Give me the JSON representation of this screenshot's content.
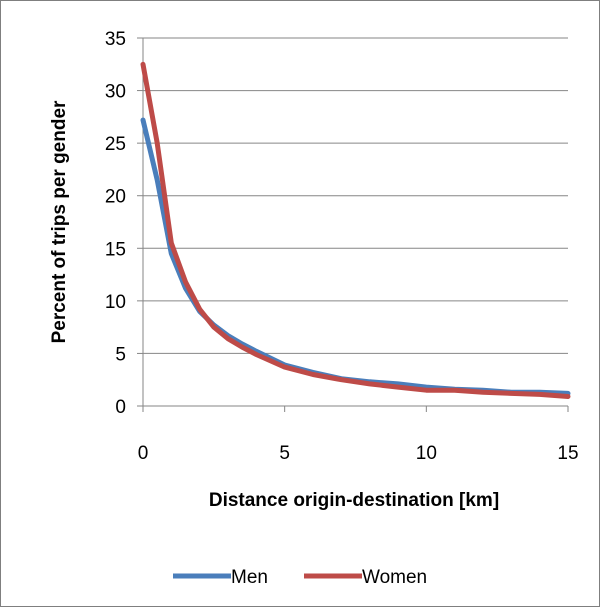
{
  "chart_data": {
    "type": "line",
    "title": "",
    "xlabel": "Distance origin-destination  [km]",
    "ylabel": "Percent of trips per gender",
    "xlim": [
      0,
      15
    ],
    "ylim": [
      0,
      35
    ],
    "xticks": [
      0,
      5,
      10,
      15
    ],
    "yticks": [
      0,
      5,
      10,
      15,
      20,
      25,
      30,
      35
    ],
    "grid": "horizontal",
    "legend_position": "bottom",
    "series": [
      {
        "name": "Men",
        "color": "#4a7ebb",
        "x": [
          0,
          0.5,
          1,
          1.5,
          2,
          2.5,
          3,
          3.5,
          4,
          5,
          6,
          7,
          8,
          9,
          10,
          11,
          12,
          13,
          14,
          15
        ],
        "y": [
          27.2,
          21.5,
          14.5,
          11.2,
          9.0,
          7.7,
          6.7,
          5.9,
          5.2,
          3.9,
          3.2,
          2.6,
          2.3,
          2.1,
          1.8,
          1.6,
          1.5,
          1.3,
          1.3,
          1.2
        ]
      },
      {
        "name": "Women",
        "color": "#be4b48",
        "x": [
          0,
          0.5,
          1,
          1.5,
          2,
          2.5,
          3,
          3.5,
          4,
          5,
          6,
          7,
          8,
          9,
          10,
          11,
          12,
          13,
          14,
          15
        ],
        "y": [
          32.5,
          25.0,
          15.5,
          11.8,
          9.2,
          7.5,
          6.4,
          5.6,
          4.9,
          3.7,
          3.0,
          2.5,
          2.1,
          1.8,
          1.5,
          1.5,
          1.3,
          1.2,
          1.1,
          0.9
        ]
      }
    ]
  }
}
